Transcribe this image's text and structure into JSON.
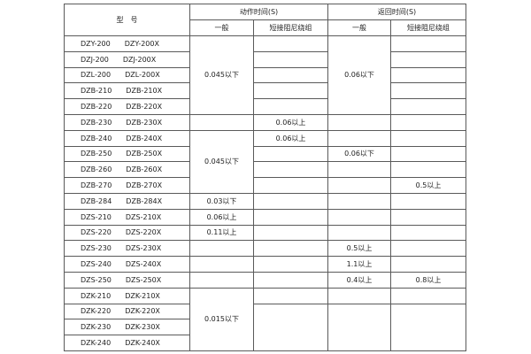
{
  "header": {
    "model": "型　号",
    "action_time": "动作时间(S)",
    "return_time": "返回时间(S)",
    "action_general": "一般",
    "action_short": "短接阻尼绕组",
    "return_general": "一般",
    "return_short": "短接阻尼绕组"
  },
  "rows": [
    {
      "model_a": "DZY-200",
      "model_b": "DZY-200X",
      "action_general": "0.045以下",
      "action_short": "",
      "return_general": "0.06以下",
      "return_short": ""
    },
    {
      "model_a": "DZJ-200",
      "model_b": "DZJ-200X",
      "action_short": "",
      "return_short": ""
    },
    {
      "model_a": "DZL-200",
      "model_b": "DZL-200X",
      "action_short": "",
      "return_short": ""
    },
    {
      "model_a": "DZB-210",
      "model_b": "DZB-210X",
      "action_short": "",
      "return_short": ""
    },
    {
      "model_a": "DZB-220",
      "model_b": "DZB-220X",
      "action_short": "",
      "return_short": ""
    },
    {
      "model_a": "DZB-230",
      "model_b": "DZB-230X",
      "action_general": "",
      "action_short": "0.06以上",
      "return_general": "",
      "return_short": ""
    },
    {
      "model_a": "DZB-240",
      "model_b": "DZB-240X",
      "action_general": "0.045以下",
      "action_short": "0.06以上",
      "return_general": "",
      "return_short": ""
    },
    {
      "model_a": "DZB-250",
      "model_b": "DZB-250X",
      "action_short": "",
      "return_general": "0.06以下",
      "return_short": ""
    },
    {
      "model_a": "DZB-260",
      "model_b": "DZB-260X",
      "action_short": "",
      "return_general": "",
      "return_short": ""
    },
    {
      "model_a": "DZB-270",
      "model_b": "DZB-270X",
      "action_short": "",
      "return_general": "",
      "return_short": "0.5以上"
    },
    {
      "model_a": "DZB-284",
      "model_b": "DZB-284X",
      "action_general": "0.03以下",
      "action_short": "",
      "return_general": "",
      "return_short": ""
    },
    {
      "model_a": "DZS-210",
      "model_b": "DZS-210X",
      "action_general": "0.06以上",
      "action_short": "",
      "return_general": "",
      "return_short": ""
    },
    {
      "model_a": "DZS-220",
      "model_b": "DZS-220X",
      "action_general": "0.11以上",
      "action_short": "",
      "return_general": "",
      "return_short": ""
    },
    {
      "model_a": "DZS-230",
      "model_b": "DZS-230X",
      "action_general": "",
      "action_short": "",
      "return_general": "0.5以上",
      "return_short": ""
    },
    {
      "model_a": "DZS-240",
      "model_b": "DZS-240X",
      "action_general": "",
      "action_short": "",
      "return_general": "1.1以上",
      "return_short": ""
    },
    {
      "model_a": "DZS-250",
      "model_b": "DZS-250X",
      "action_general": "",
      "action_short": "",
      "return_general": "0.4以上",
      "return_short": "0.8以上"
    },
    {
      "model_a": "DZK-210",
      "model_b": "DZK-210X",
      "action_general": "0.015以下",
      "action_short": "",
      "return_general": "",
      "return_short": ""
    },
    {
      "model_a": "DZK-220",
      "model_b": "DZK-220X",
      "action_short": "",
      "return_general": "",
      "return_short": ""
    },
    {
      "model_a": "DZK-230",
      "model_b": "DZK-230X"
    },
    {
      "model_a": "DZK-240",
      "model_b": "DZK-240X"
    }
  ]
}
